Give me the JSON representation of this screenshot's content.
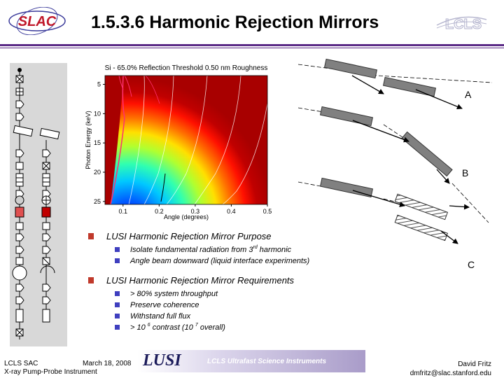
{
  "header": {
    "title": "1.5.3.6 Harmonic Rejection Mirrors",
    "left_logo_text": "SLAC",
    "right_logo_text": "LCLS"
  },
  "chart_data": {
    "type": "heatmap",
    "title": "Si - 65.0% Reflection Threshold 0.50 nm Roughness",
    "xlabel": "Angle (degrees)",
    "ylabel": "Photon Energy (keV)",
    "x_ticks": [
      "0.1",
      "0.2",
      "0.3",
      "0.4",
      "0.5"
    ],
    "y_ticks": [
      "5",
      "10",
      "15",
      "20",
      "25"
    ],
    "xlim": [
      0.05,
      0.5
    ],
    "ylim": [
      3.5,
      25.5
    ],
    "y_inverted": true,
    "colormap": "jet",
    "colors": {
      "low": "#0000ff",
      "high": "#a80000"
    }
  },
  "diagram": {
    "labels": {
      "a": "A",
      "b": "B",
      "c": "C"
    }
  },
  "bullets": [
    {
      "text": "LUSI Harmonic Rejection Mirror Purpose",
      "children": [
        {
          "pre": "Isolate fundamental radiation from 3",
          "sup": "rd",
          "post": " harmonic"
        },
        {
          "text": "Angle beam downward (liquid interface experiments)"
        }
      ]
    },
    {
      "text": "LUSI Harmonic Rejection Mirror Requirements",
      "children": [
        {
          "text": "> 80% system throughput"
        },
        {
          "text": "Preserve coherence"
        },
        {
          "text": "Withstand full flux"
        },
        {
          "pre": "> 10 ",
          "sup": "6",
          "mid": " contrast  (10 ",
          "sup2": "7",
          "post": " overall)"
        }
      ]
    }
  ],
  "footer": {
    "left_line1": "LCLS SAC",
    "left_line2": "X-ray Pump-Probe Instrument",
    "date": "March 18, 2008",
    "banner_word": "LUSI",
    "banner_text": "LCLS Ultrafast Science Instruments",
    "author": "David Fritz",
    "email": "dmfritz@slac.stanford.edu"
  }
}
